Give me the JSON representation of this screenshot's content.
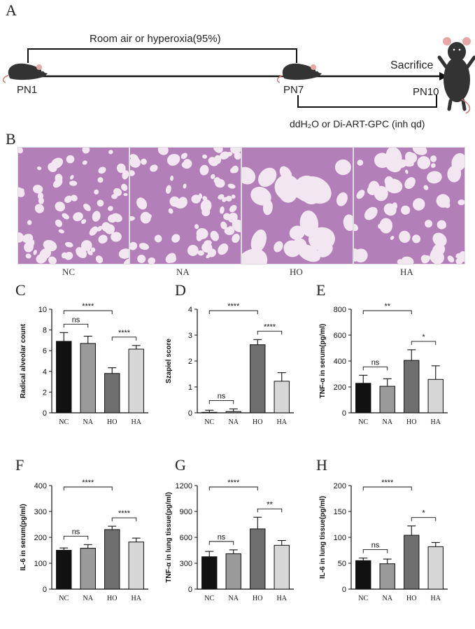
{
  "panel_letters": {
    "a": "A",
    "b": "B",
    "c": "C",
    "d": "D",
    "e": "E",
    "f": "F",
    "g": "G",
    "h": "H"
  },
  "timeline": {
    "exposure_label": "Room air  or  hyperoxia(95%)",
    "sacrifice_label": "Sacrifice",
    "pn1": "PN1",
    "pn7": "PN7",
    "pn10": "PN10",
    "treatment_label": "ddH₂O or Di-ART-GPC (inh qd)"
  },
  "histology": {
    "labels": [
      "NC",
      "NA",
      "HO",
      "HA"
    ]
  },
  "colors": {
    "NC": "#111111",
    "NA": "#9a9a9a",
    "HO": "#6e6e6e",
    "HA": "#d6d6d6",
    "tissue": "#b37fb8",
    "background_tissue": "#f2e6f0"
  },
  "chart_data": [
    {
      "id": "C",
      "type": "bar",
      "categories": [
        "NC",
        "NA",
        "HO",
        "HA"
      ],
      "values": [
        6.9,
        6.7,
        3.8,
        6.15
      ],
      "errors": [
        0.85,
        0.7,
        0.55,
        0.35
      ],
      "ylabel": "Radical alveolar count",
      "ylim": [
        0,
        10
      ],
      "yticks": [
        0,
        2,
        4,
        6,
        8,
        10
      ],
      "brackets": [
        {
          "from": 0,
          "to": 1,
          "label": "ns"
        },
        {
          "from": 2,
          "to": 3,
          "label": "****"
        },
        {
          "from": 0,
          "to": 2,
          "label": "****"
        }
      ]
    },
    {
      "id": "D",
      "type": "bar",
      "categories": [
        "NC",
        "NA",
        "HO",
        "HA"
      ],
      "values": [
        0.02,
        0.05,
        2.63,
        1.22
      ],
      "errors": [
        0.08,
        0.1,
        0.2,
        0.33
      ],
      "ylabel": "Szapiel score",
      "ylim": [
        0,
        4
      ],
      "yticks": [
        0,
        1,
        2,
        3,
        4
      ],
      "brackets": [
        {
          "from": 0,
          "to": 1,
          "label": "ns"
        },
        {
          "from": 2,
          "to": 3,
          "label": "****"
        },
        {
          "from": 0,
          "to": 2,
          "label": "****"
        }
      ]
    },
    {
      "id": "E",
      "type": "bar",
      "categories": [
        "NC",
        "NA",
        "HO",
        "HA"
      ],
      "values": [
        228,
        205,
        405,
        258
      ],
      "errors": [
        62,
        58,
        82,
        105
      ],
      "ylabel": "TNF-α  in serum(pg/ml)",
      "ylim": [
        0,
        800
      ],
      "yticks": [
        0,
        200,
        400,
        600,
        800
      ],
      "brackets": [
        {
          "from": 0,
          "to": 1,
          "label": "ns"
        },
        {
          "from": 2,
          "to": 3,
          "label": "*"
        },
        {
          "from": 0,
          "to": 2,
          "label": "**"
        }
      ]
    },
    {
      "id": "F",
      "type": "bar",
      "categories": [
        "NC",
        "NA",
        "HO",
        "HA"
      ],
      "values": [
        150,
        158,
        230,
        182
      ],
      "errors": [
        9,
        14,
        13,
        15
      ],
      "ylabel": "IL-6  in serum(pg/ml)",
      "ylim": [
        0,
        400
      ],
      "yticks": [
        0,
        100,
        200,
        300,
        400
      ],
      "brackets": [
        {
          "from": 0,
          "to": 1,
          "label": "ns"
        },
        {
          "from": 2,
          "to": 3,
          "label": "****"
        },
        {
          "from": 0,
          "to": 2,
          "label": "****"
        }
      ]
    },
    {
      "id": "G",
      "type": "bar",
      "categories": [
        "NC",
        "NA",
        "HO",
        "HA"
      ],
      "values": [
        375,
        410,
        698,
        508
      ],
      "errors": [
        62,
        45,
        135,
        55
      ],
      "ylabel": "TNF-α  in lung tissue(pg/ml)",
      "ylim": [
        0,
        1200
      ],
      "yticks": [
        0,
        300,
        600,
        900,
        1200
      ],
      "brackets": [
        {
          "from": 0,
          "to": 1,
          "label": "ns"
        },
        {
          "from": 2,
          "to": 3,
          "label": "**"
        },
        {
          "from": 0,
          "to": 2,
          "label": "****"
        }
      ]
    },
    {
      "id": "H",
      "type": "bar",
      "categories": [
        "NC",
        "NA",
        "HO",
        "HA"
      ],
      "values": [
        55,
        49,
        104,
        82
      ],
      "errors": [
        5,
        9,
        18,
        8
      ],
      "ylabel": "IL-6  in lung tissue(pg/ml)",
      "ylim": [
        0,
        200
      ],
      "yticks": [
        0,
        50,
        100,
        150,
        200
      ],
      "brackets": [
        {
          "from": 0,
          "to": 1,
          "label": "ns"
        },
        {
          "from": 2,
          "to": 3,
          "label": "*"
        },
        {
          "from": 0,
          "to": 2,
          "label": "****"
        }
      ]
    }
  ]
}
